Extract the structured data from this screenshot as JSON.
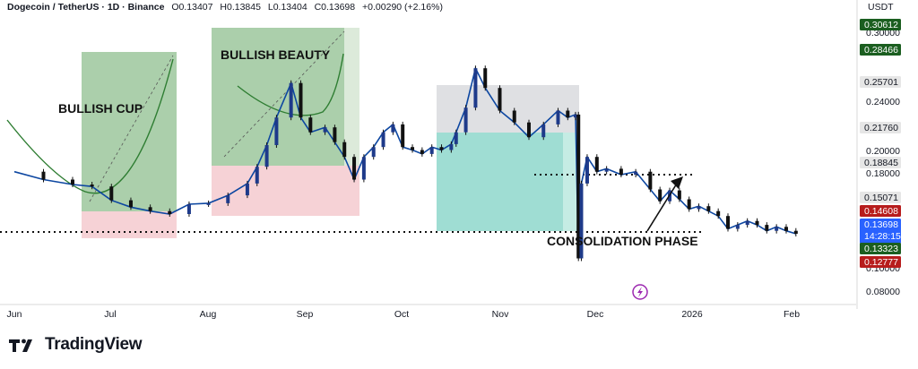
{
  "header": {
    "symbol": "Dogecoin / TetherUS · 1D · Binance",
    "open": "O0.13407",
    "high": "H0.13845",
    "low": "L0.13404",
    "close": "C0.13698",
    "change": "+0.00290 (+2.16%)"
  },
  "unit": "USDT",
  "brand": "TradingView",
  "chart_data": {
    "type": "candlestick",
    "x_ticks": [
      "Jun",
      "Jul",
      "Aug",
      "Sep",
      "Oct",
      "Nov",
      "Dec",
      "2026",
      "Feb"
    ],
    "y_ticks": [
      "0.30000",
      "0.24000",
      "0.20000",
      "0.18000",
      "0.10000",
      "0.08000"
    ],
    "price_labels": [
      {
        "value": "0.30612",
        "color": "#1b5e20"
      },
      {
        "value": "0.28466",
        "color": "#1b5e20"
      },
      {
        "value": "0.25701",
        "color": "#e6e6e6"
      },
      {
        "value": "0.21760",
        "color": "#e6e6e6"
      },
      {
        "value": "0.18845",
        "color": "#e6e6e6"
      },
      {
        "value": "0.15071",
        "color": "#e6e6e6"
      },
      {
        "value": "0.14608",
        "color": "#b71c1c"
      },
      {
        "value": "0.13698",
        "color": "#2962ff",
        "countdown": "14:28:15"
      },
      {
        "value": "0.13323",
        "color": "#1b5e20"
      },
      {
        "value": "0.12777",
        "color": "#b71c1c"
      }
    ],
    "annotations": [
      "BULLISH CUP",
      "BULLISH BEAUTY",
      "CONSOLIDATION PHASE"
    ],
    "price_path": [
      [
        0.0,
        0.2
      ],
      [
        0.3,
        0.192
      ],
      [
        0.6,
        0.187
      ],
      [
        0.8,
        0.185
      ],
      [
        1.0,
        0.171
      ],
      [
        1.2,
        0.164
      ],
      [
        1.4,
        0.16
      ],
      [
        1.6,
        0.157
      ],
      [
        1.8,
        0.167
      ],
      [
        2.0,
        0.168
      ],
      [
        2.2,
        0.176
      ],
      [
        2.4,
        0.188
      ],
      [
        2.5,
        0.205
      ],
      [
        2.6,
        0.227
      ],
      [
        2.7,
        0.255
      ],
      [
        2.85,
        0.29
      ],
      [
        2.95,
        0.255
      ],
      [
        3.05,
        0.24
      ],
      [
        3.2,
        0.245
      ],
      [
        3.3,
        0.23
      ],
      [
        3.4,
        0.215
      ],
      [
        3.5,
        0.192
      ],
      [
        3.6,
        0.215
      ],
      [
        3.7,
        0.225
      ],
      [
        3.8,
        0.24
      ],
      [
        3.9,
        0.248
      ],
      [
        4.0,
        0.225
      ],
      [
        4.1,
        0.222
      ],
      [
        4.2,
        0.218
      ],
      [
        4.3,
        0.225
      ],
      [
        4.4,
        0.222
      ],
      [
        4.5,
        0.228
      ],
      [
        4.55,
        0.24
      ],
      [
        4.65,
        0.265
      ],
      [
        4.75,
        0.305
      ],
      [
        4.85,
        0.285
      ],
      [
        5.0,
        0.262
      ],
      [
        5.15,
        0.25
      ],
      [
        5.3,
        0.235
      ],
      [
        5.45,
        0.248
      ],
      [
        5.6,
        0.262
      ],
      [
        5.7,
        0.255
      ],
      [
        5.78,
        0.258
      ],
      [
        5.81,
        0.112
      ],
      [
        5.84,
        0.188
      ],
      [
        5.9,
        0.215
      ],
      [
        6.0,
        0.2
      ],
      [
        6.1,
        0.203
      ],
      [
        6.25,
        0.197
      ],
      [
        6.4,
        0.2
      ],
      [
        6.55,
        0.182
      ],
      [
        6.65,
        0.17
      ],
      [
        6.75,
        0.181
      ],
      [
        6.85,
        0.172
      ],
      [
        6.95,
        0.162
      ],
      [
        7.05,
        0.165
      ],
      [
        7.15,
        0.16
      ],
      [
        7.25,
        0.155
      ],
      [
        7.35,
        0.142
      ],
      [
        7.45,
        0.146
      ],
      [
        7.55,
        0.15
      ],
      [
        7.65,
        0.146
      ],
      [
        7.75,
        0.14
      ],
      [
        7.85,
        0.144
      ],
      [
        7.95,
        0.14
      ],
      [
        8.05,
        0.137
      ]
    ]
  }
}
